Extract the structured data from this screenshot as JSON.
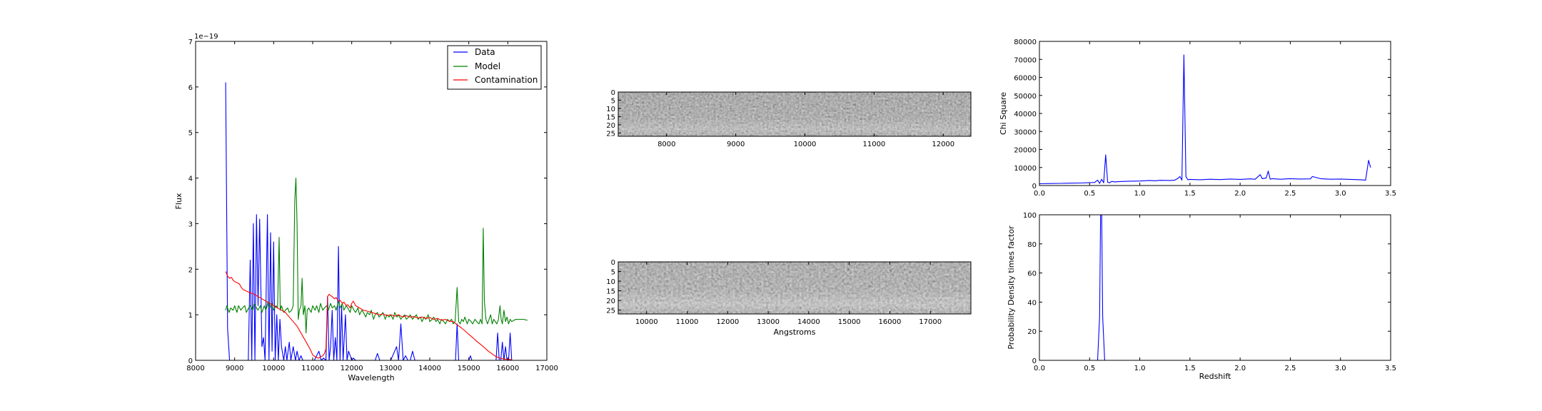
{
  "chart_data": [
    {
      "type": "line",
      "xlabel": "Wavelength",
      "ylabel": "Flux",
      "offset_label": "1e−19",
      "xlim": [
        8000,
        17000
      ],
      "ylim": [
        0,
        7
      ],
      "xticks": [
        8000,
        9000,
        10000,
        11000,
        12000,
        13000,
        14000,
        15000,
        16000,
        17000
      ],
      "yticks": [
        0,
        1,
        2,
        3,
        4,
        5,
        6,
        7
      ],
      "legend_position": "top-right",
      "series": [
        {
          "name": "Data",
          "color": "#0000ff",
          "x": [
            8770,
            8820,
            8870,
            9300,
            9350,
            9400,
            9440,
            9480,
            9520,
            9560,
            9600,
            9640,
            9700,
            9740,
            9780,
            9840,
            9880,
            9920,
            9960,
            10000,
            10040,
            10080,
            10120,
            10160,
            10200,
            10260,
            10300,
            10340,
            10400,
            10440,
            10500,
            10560,
            10600,
            10650,
            10700,
            10750,
            10800,
            10860,
            10920,
            10980,
            11040,
            11100,
            11160,
            11220,
            11280,
            11340,
            11380,
            11420,
            11460,
            11500,
            11540,
            11580,
            11620,
            11660,
            11700,
            11740,
            11780,
            11840,
            11880,
            11920,
            11960,
            12000,
            12040,
            12100,
            12600,
            12660,
            12720,
            13000,
            13100,
            13150,
            13200,
            13260,
            13320,
            13380,
            13440,
            13500,
            13560,
            13620,
            13680,
            13740,
            13800,
            14660,
            14700,
            14740,
            14780,
            14820,
            15000,
            15040,
            15080,
            15700,
            15740,
            15780,
            15820,
            15860,
            15900,
            15940,
            15980,
            16020,
            16060,
            16100,
            16140,
            16180,
            16220
          ],
          "y": [
            6.1,
            0.7,
            0,
            0,
            0,
            2.2,
            0,
            3.0,
            0,
            3.2,
            1.2,
            3.1,
            0.3,
            0.5,
            0,
            3.2,
            0,
            2.8,
            0.2,
            2.6,
            0,
            1.0,
            0,
            0.9,
            0.3,
            0,
            0.3,
            0,
            0.4,
            0,
            0.3,
            0,
            0.2,
            0,
            0.1,
            0,
            0,
            0,
            0,
            0,
            0,
            0.1,
            0.2,
            0,
            0.05,
            0,
            1.4,
            0,
            0.3,
            1.1,
            0,
            0.5,
            0,
            2.5,
            0,
            1.2,
            0,
            1.0,
            0,
            0.2,
            0.1,
            0,
            0.05,
            0,
            0,
            0.15,
            0,
            0,
            0.2,
            0.3,
            0,
            0.8,
            0,
            0.1,
            0,
            0,
            0.2,
            0,
            0,
            0,
            0,
            0,
            0.8,
            0,
            0,
            0,
            0,
            0.1,
            0,
            0,
            0.6,
            0,
            0,
            0.4,
            0,
            0.3,
            0,
            0,
            0.6,
            0,
            0,
            0,
            0
          ]
        },
        {
          "name": "Model",
          "color": "#008000",
          "x": [
            8770,
            8800,
            8860,
            8900,
            8960,
            9000,
            9060,
            9100,
            9160,
            9200,
            9260,
            9300,
            9360,
            9400,
            9460,
            9500,
            9560,
            9600,
            9660,
            9700,
            9760,
            9800,
            9860,
            9900,
            9960,
            10000,
            10060,
            10100,
            10140,
            10170,
            10200,
            10260,
            10300,
            10360,
            10400,
            10460,
            10500,
            10540,
            10570,
            10600,
            10630,
            10660,
            10700,
            10730,
            10760,
            10800,
            10830,
            10860,
            10900,
            10960,
            11000,
            11060,
            11100,
            11160,
            11200,
            11260,
            11300,
            11360,
            11400,
            11460,
            11500,
            11560,
            11600,
            11660,
            11700,
            11760,
            11800,
            11860,
            11900,
            11960,
            12000,
            12060,
            12100,
            12160,
            12200,
            12260,
            12300,
            12360,
            12400,
            12460,
            12500,
            12560,
            12600,
            12660,
            12700,
            12760,
            12800,
            12860,
            12900,
            12960,
            13000,
            13060,
            13100,
            13160,
            13200,
            13260,
            13300,
            13360,
            13400,
            13460,
            13500,
            13560,
            13600,
            13660,
            13700,
            13760,
            13800,
            13860,
            13900,
            13960,
            14000,
            14060,
            14100,
            14160,
            14200,
            14260,
            14300,
            14360,
            14400,
            14460,
            14500,
            14560,
            14600,
            14650,
            14700,
            14740,
            14780,
            14820,
            14860,
            14900,
            14960,
            15000,
            15060,
            15100,
            15160,
            15200,
            15260,
            15300,
            15340,
            15370,
            15400,
            15440,
            15480,
            15520,
            15560,
            15600,
            15640,
            15680,
            15720,
            15760,
            15800,
            15830,
            15860,
            15900,
            15940,
            15980,
            16020,
            16060,
            16100,
            16200,
            16300,
            16400,
            16500
          ],
          "y": [
            1.1,
            1.2,
            1.05,
            1.15,
            1.1,
            1.2,
            1.05,
            1.2,
            1.1,
            1.15,
            1.2,
            1.05,
            1.15,
            1.2,
            1.1,
            1.25,
            1.15,
            1.1,
            1.2,
            1.05,
            1.2,
            1.1,
            1.3,
            1.15,
            1.25,
            1.1,
            1.2,
            1.15,
            2.7,
            1.1,
            1.2,
            1.05,
            1.1,
            1.15,
            1.05,
            1.1,
            1.2,
            3.5,
            4.0,
            3.0,
            0.9,
            1.1,
            1.2,
            1.8,
            1.0,
            1.2,
            0.6,
            1.1,
            1.15,
            1.05,
            1.2,
            1.1,
            1.2,
            1.05,
            1.25,
            1.1,
            1.15,
            1.2,
            1.1,
            1.25,
            1.15,
            1.2,
            1.1,
            1.3,
            1.15,
            1.25,
            1.1,
            1.2,
            1.15,
            1.05,
            1.2,
            1.1,
            1.05,
            1.15,
            1.0,
            1.1,
            1.05,
            0.95,
            1.05,
            1.0,
            1.1,
            0.9,
            1.0,
            1.05,
            0.95,
            1.0,
            1.05,
            0.9,
            1.0,
            0.95,
            1.0,
            0.9,
            1.05,
            0.95,
            1.0,
            0.9,
            0.95,
            1.0,
            0.9,
            0.95,
            1.0,
            0.9,
            0.95,
            1.0,
            0.9,
            0.95,
            0.85,
            0.95,
            0.9,
            1.0,
            0.85,
            0.9,
            0.95,
            0.85,
            0.9,
            0.8,
            0.9,
            0.85,
            0.8,
            0.9,
            0.85,
            0.9,
            0.8,
            0.85,
            1.6,
            0.85,
            0.8,
            0.9,
            0.85,
            0.95,
            0.8,
            0.9,
            0.85,
            0.8,
            0.9,
            0.85,
            0.8,
            0.9,
            0.8,
            2.9,
            1.3,
            0.9,
            0.8,
            0.9,
            1.0,
            0.8,
            0.9,
            0.85,
            0.8,
            0.9,
            1.2,
            0.9,
            0.8,
            1.1,
            0.85,
            0.95,
            0.8,
            0.9,
            0.85,
            0.9,
            0.9,
            0.9,
            0.88
          ]
        },
        {
          "name": "Contamination",
          "color": "#ff0000",
          "x": [
            8770,
            8820,
            8870,
            8920,
            8970,
            9020,
            9070,
            9120,
            9170,
            9220,
            9300,
            9400,
            9500,
            9600,
            9700,
            9800,
            9900,
            10000,
            10100,
            10200,
            10300,
            10400,
            10500,
            10600,
            10700,
            10800,
            10900,
            10960,
            11000,
            11060,
            11100,
            11160,
            11200,
            11260,
            11300,
            11340,
            11380,
            11420,
            11460,
            11500,
            11560,
            11600,
            11660,
            11700,
            11760,
            11800,
            11860,
            11900,
            11960,
            12000,
            12040,
            12100,
            12200,
            12300,
            12400,
            12500,
            12600,
            12700,
            12800,
            12900,
            13000,
            13100,
            13200,
            13300,
            13400,
            13500,
            13600,
            13700,
            13800,
            13900,
            14000,
            14100,
            14200,
            14300,
            14400,
            14500,
            14600,
            14700,
            14800,
            14900,
            15000,
            15100,
            15200,
            15300,
            15400,
            15500,
            15600,
            15700,
            15800,
            15900,
            16000,
            16050,
            16100
          ],
          "y": [
            1.95,
            1.85,
            1.8,
            1.82,
            1.75,
            1.72,
            1.7,
            1.68,
            1.6,
            1.55,
            1.52,
            1.48,
            1.45,
            1.4,
            1.35,
            1.3,
            1.25,
            1.2,
            1.15,
            1.1,
            1.05,
            0.95,
            0.85,
            0.75,
            0.6,
            0.45,
            0.3,
            0.2,
            0.12,
            0.08,
            0.06,
            0.05,
            0.08,
            0.1,
            0.15,
            0.25,
            1.4,
            1.45,
            1.42,
            1.4,
            1.35,
            1.38,
            1.3,
            1.32,
            1.25,
            1.28,
            1.2,
            1.22,
            1.15,
            1.25,
            1.3,
            1.2,
            1.15,
            1.1,
            1.08,
            1.05,
            1.03,
            1.0,
            1.02,
            0.98,
            1.0,
            0.97,
            1.0,
            0.95,
            0.98,
            0.95,
            0.96,
            0.93,
            0.95,
            0.92,
            0.94,
            0.9,
            0.92,
            0.88,
            0.9,
            0.86,
            0.85,
            0.78,
            0.72,
            0.65,
            0.57,
            0.5,
            0.42,
            0.35,
            0.28,
            0.2,
            0.14,
            0.08,
            0.05,
            0.03,
            0.02,
            0.02,
            0.01
          ]
        }
      ]
    },
    {
      "type": "heatmap",
      "xlim": [
        7300,
        12400
      ],
      "ylim": [
        27,
        0
      ],
      "xticks": [
        8000,
        9000,
        10000,
        11000,
        12000
      ],
      "yticks": [
        0,
        5,
        10,
        15,
        20,
        25
      ]
    },
    {
      "type": "heatmap",
      "xlabel": "Angstroms",
      "xlim": [
        9300,
        18000
      ],
      "ylim": [
        27,
        0
      ],
      "xticks": [
        10000,
        11000,
        12000,
        13000,
        14000,
        15000,
        16000,
        17000
      ],
      "yticks": [
        0,
        5,
        10,
        15,
        20,
        25
      ]
    },
    {
      "type": "line",
      "ylabel": "Chi Square",
      "xlim": [
        0,
        3.5
      ],
      "ylim": [
        0,
        80000
      ],
      "xticks": [
        "0.0",
        "0.5",
        "1.0",
        "1.5",
        "2.0",
        "2.5",
        "3.0",
        "3.5"
      ],
      "yticks": [
        0,
        10000,
        20000,
        30000,
        40000,
        50000,
        60000,
        70000,
        80000
      ],
      "series": [
        {
          "color": "#0000ff",
          "x": [
            0.0,
            0.1,
            0.2,
            0.3,
            0.4,
            0.5,
            0.55,
            0.58,
            0.6,
            0.62,
            0.64,
            0.66,
            0.68,
            0.7,
            0.72,
            0.75,
            0.8,
            0.9,
            1.0,
            1.1,
            1.15,
            1.2,
            1.3,
            1.35,
            1.38,
            1.4,
            1.42,
            1.44,
            1.46,
            1.48,
            1.5,
            1.6,
            1.7,
            1.8,
            1.9,
            2.0,
            2.1,
            2.15,
            2.2,
            2.22,
            2.24,
            2.26,
            2.28,
            2.3,
            2.32,
            2.4,
            2.5,
            2.6,
            2.7,
            2.72,
            2.8,
            2.9,
            3.0,
            3.1,
            3.2,
            3.25,
            3.28,
            3.3
          ],
          "y": [
            1000,
            1100,
            1200,
            1300,
            1400,
            1600,
            1700,
            3000,
            1200,
            3500,
            1500,
            17000,
            1800,
            1500,
            2300,
            2000,
            2200,
            2400,
            2500,
            2800,
            2600,
            2900,
            2800,
            3000,
            4000,
            5000,
            3000,
            72500,
            5000,
            3200,
            3400,
            3200,
            3500,
            3300,
            3600,
            3400,
            3700,
            3500,
            6000,
            3800,
            4000,
            4200,
            8000,
            3500,
            3800,
            3500,
            3800,
            3600,
            3700,
            5000,
            3800,
            3500,
            3600,
            3400,
            3200,
            3000,
            14000,
            10000
          ]
        }
      ]
    },
    {
      "type": "line",
      "xlabel": "Redshift",
      "ylabel": "Probability Density times factor",
      "xlim": [
        0,
        3.5
      ],
      "ylim": [
        0,
        100
      ],
      "xticks": [
        "0.0",
        "0.5",
        "1.0",
        "1.5",
        "2.0",
        "2.5",
        "3.0",
        "3.5"
      ],
      "yticks": [
        0,
        20,
        40,
        60,
        80,
        100
      ],
      "series": [
        {
          "color": "#0000ff",
          "x": [
            0.0,
            0.58,
            0.6,
            0.61,
            0.62,
            0.63,
            0.65,
            3.3
          ],
          "y": [
            0,
            0,
            30,
            100,
            100,
            30,
            0,
            0
          ]
        }
      ]
    }
  ]
}
